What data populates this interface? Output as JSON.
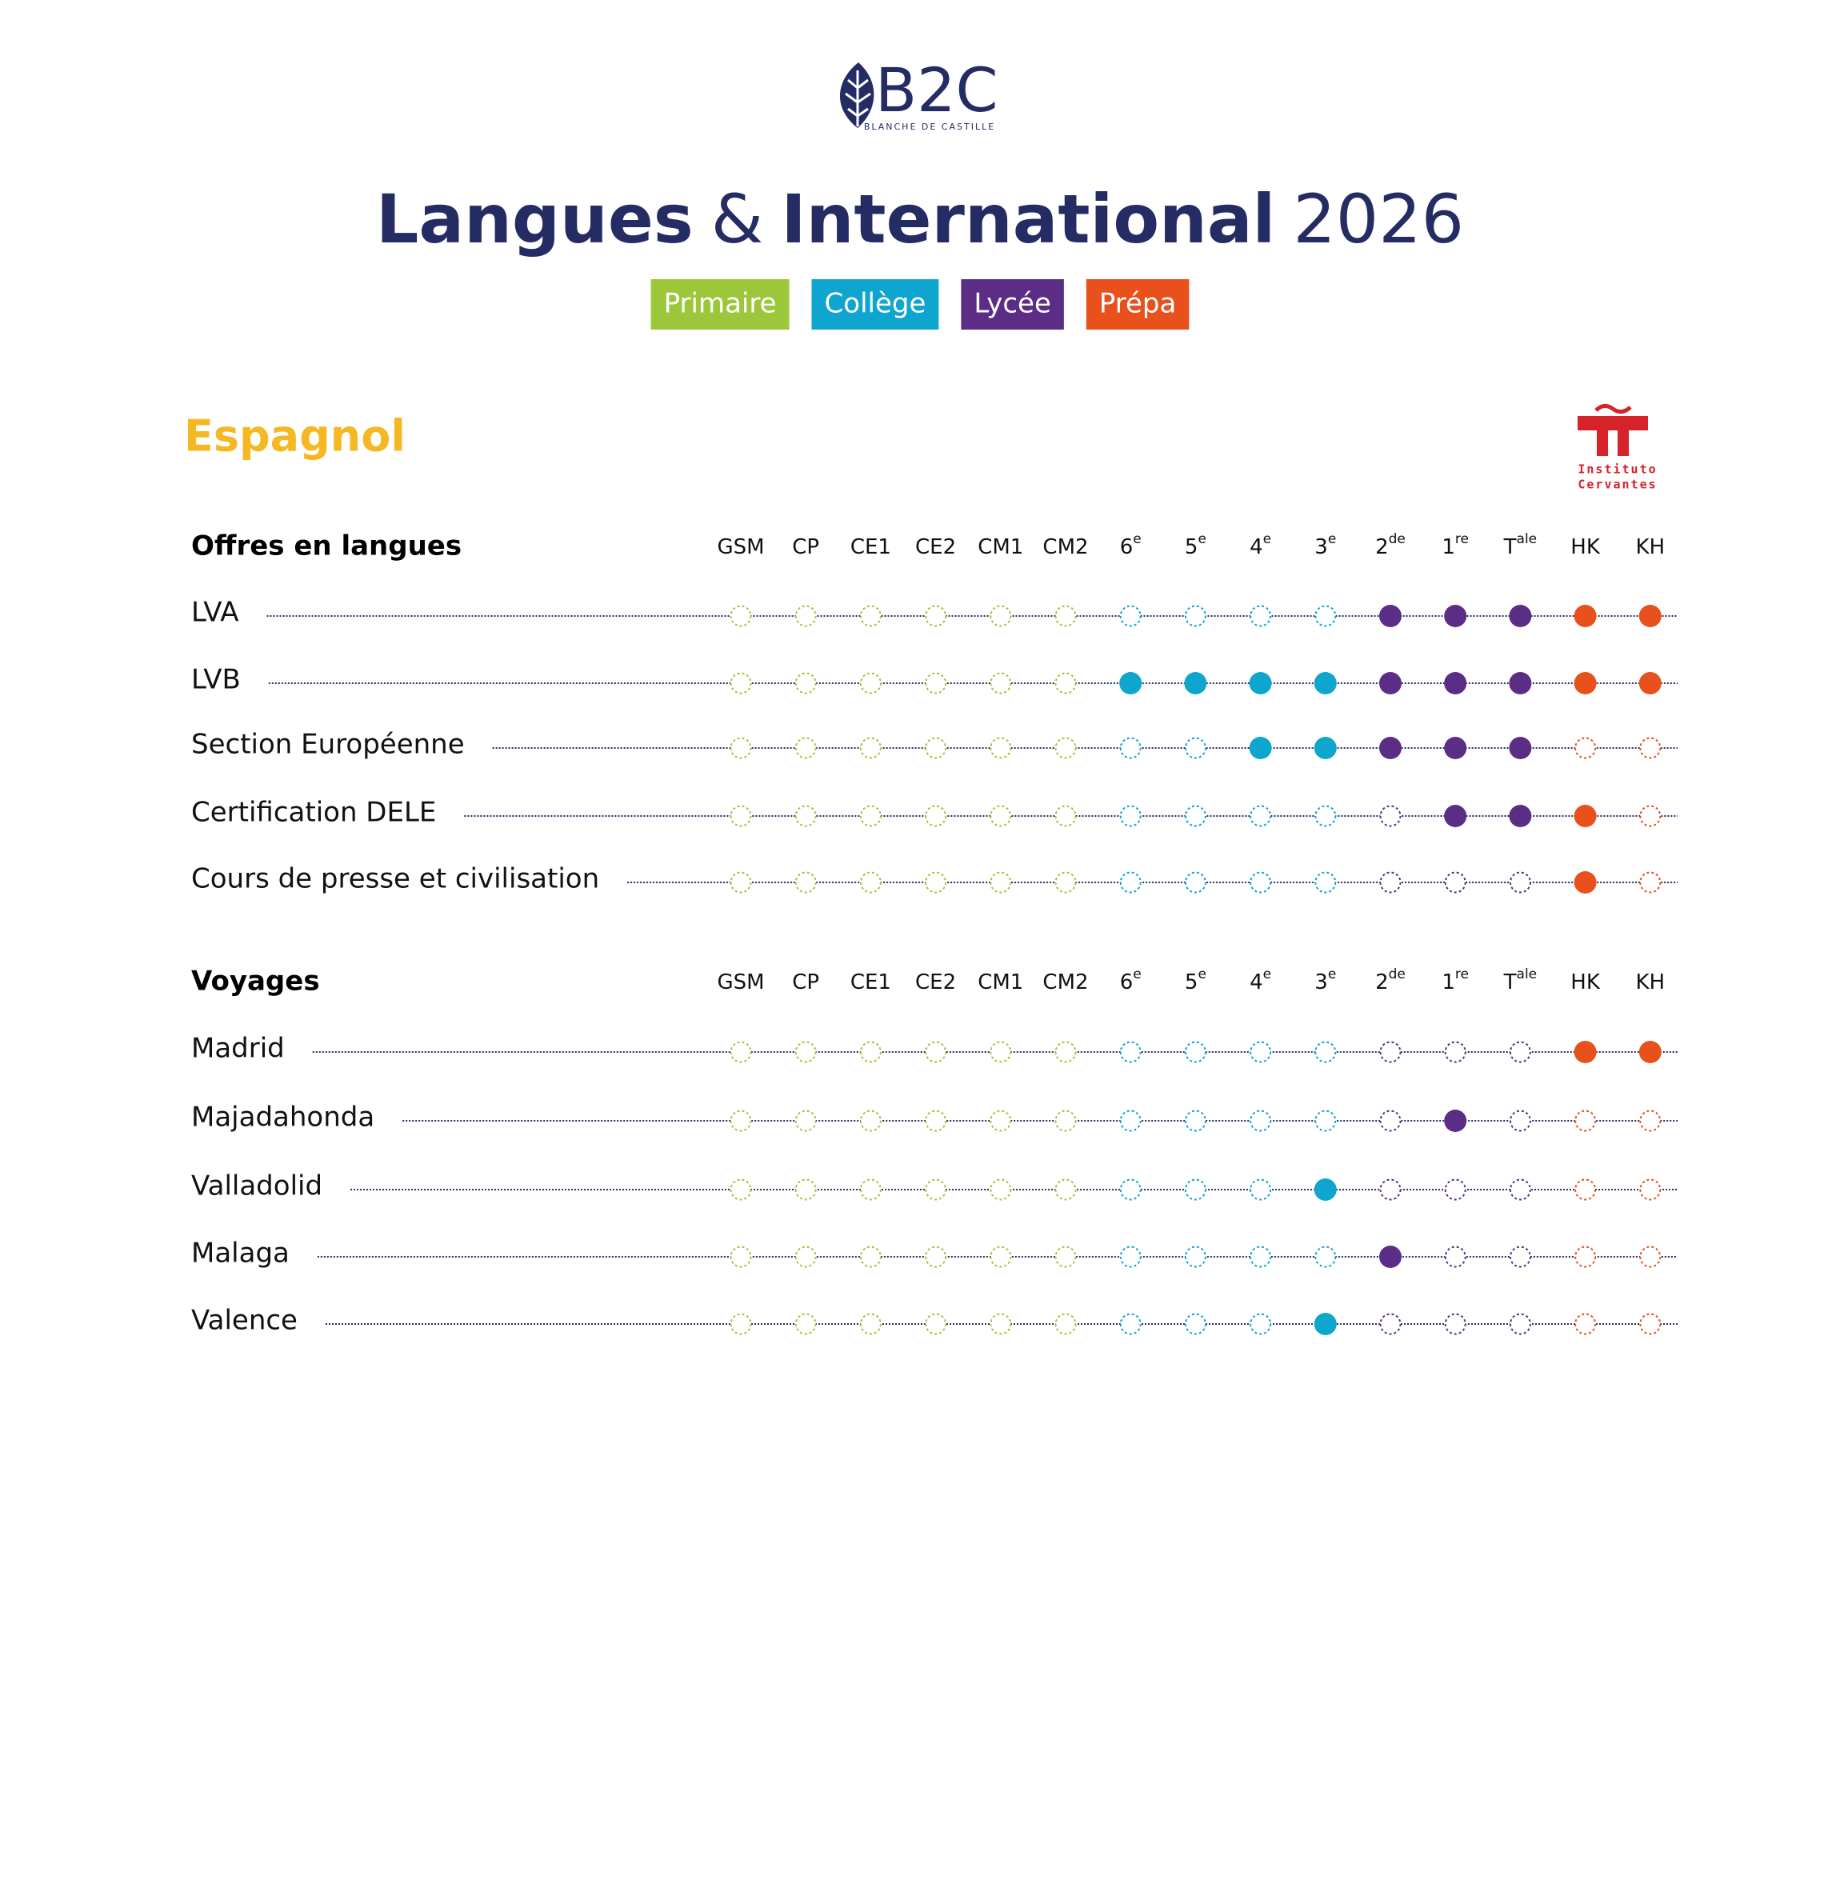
{
  "logo": {
    "text": "B2C",
    "subtitle": "BLANCHE DE CASTILLE"
  },
  "title": {
    "part1": "Langues",
    "amp": "&",
    "part2": "International",
    "year": "2026"
  },
  "levels": [
    {
      "label": "Primaire",
      "color": "#9dc73a"
    },
    {
      "label": "Collège",
      "color": "#0ea5cf"
    },
    {
      "label": "Lycée",
      "color": "#5b2d86"
    },
    {
      "label": "Prépa",
      "color": "#e8501c"
    }
  ],
  "section": "Espagnol",
  "cervantes": [
    "Instituto",
    "Cervantes"
  ],
  "columns": [
    {
      "base": "GSM",
      "level": 0
    },
    {
      "base": "CP",
      "level": 0
    },
    {
      "base": "CE1",
      "level": 0
    },
    {
      "base": "CE2",
      "level": 0
    },
    {
      "base": "CM1",
      "level": 0
    },
    {
      "base": "CM2",
      "level": 0
    },
    {
      "base": "6",
      "sup": "e",
      "level": 1
    },
    {
      "base": "5",
      "sup": "e",
      "level": 1
    },
    {
      "base": "4",
      "sup": "e",
      "level": 1
    },
    {
      "base": "3",
      "sup": "e",
      "level": 1
    },
    {
      "base": "2",
      "sup": "de",
      "level": 2
    },
    {
      "base": "1",
      "sup": "re",
      "level": 2
    },
    {
      "base": "T",
      "sup": "ale",
      "level": 2
    },
    {
      "base": "HK",
      "level": 3
    },
    {
      "base": "KH",
      "level": 3
    }
  ],
  "tables": [
    {
      "heading": "Offres en langues",
      "rows": [
        {
          "label": "LVA",
          "offered": [
            false,
            false,
            false,
            false,
            false,
            false,
            false,
            false,
            false,
            false,
            true,
            true,
            true,
            true,
            true
          ]
        },
        {
          "label": "LVB",
          "offered": [
            false,
            false,
            false,
            false,
            false,
            false,
            true,
            true,
            true,
            true,
            true,
            true,
            true,
            true,
            true
          ]
        },
        {
          "label": "Section Européenne",
          "offered": [
            false,
            false,
            false,
            false,
            false,
            false,
            false,
            false,
            true,
            true,
            true,
            true,
            true,
            false,
            false
          ]
        },
        {
          "label": "Certification DELE",
          "offered": [
            false,
            false,
            false,
            false,
            false,
            false,
            false,
            false,
            false,
            false,
            false,
            true,
            true,
            true,
            false
          ]
        },
        {
          "label": "Cours de presse et civilisation",
          "offered": [
            false,
            false,
            false,
            false,
            false,
            false,
            false,
            false,
            false,
            false,
            false,
            false,
            false,
            true,
            false
          ]
        }
      ]
    },
    {
      "heading": "Voyages",
      "rows": [
        {
          "label": "Madrid",
          "offered": [
            false,
            false,
            false,
            false,
            false,
            false,
            false,
            false,
            false,
            false,
            false,
            false,
            false,
            true,
            true
          ]
        },
        {
          "label": "Majadahonda",
          "offered": [
            false,
            false,
            false,
            false,
            false,
            false,
            false,
            false,
            false,
            false,
            false,
            true,
            false,
            false,
            false
          ]
        },
        {
          "label": "Valladolid",
          "offered": [
            false,
            false,
            false,
            false,
            false,
            false,
            false,
            false,
            false,
            true,
            false,
            false,
            false,
            false,
            false
          ]
        },
        {
          "label": "Malaga",
          "offered": [
            false,
            false,
            false,
            false,
            false,
            false,
            false,
            false,
            false,
            false,
            true,
            false,
            false,
            false,
            false
          ]
        },
        {
          "label": "Valence",
          "offered": [
            false,
            false,
            false,
            false,
            false,
            false,
            false,
            false,
            false,
            true,
            false,
            false,
            false,
            false,
            false
          ]
        }
      ]
    }
  ]
}
